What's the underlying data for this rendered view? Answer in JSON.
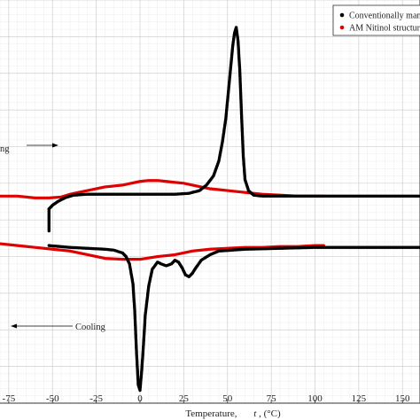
{
  "chart_data": {
    "type": "line",
    "xlabel": "Temperature,",
    "xlabel_symbol": "t",
    "xlabel_unit": ", (°C)",
    "xlim": [
      -80,
      160
    ],
    "ylim": [
      -1.0,
      1.2
    ],
    "x_ticks": [
      -75,
      -50,
      -25,
      0,
      25,
      50,
      75,
      100,
      125,
      150
    ],
    "x_tick_labels": [
      "-75",
      "-50",
      "-25",
      "0",
      "25",
      "50",
      "75",
      "100",
      "125",
      "150"
    ],
    "grid": true,
    "legend_position": "top-right",
    "annotations": [
      {
        "text": "ng",
        "arrow": "right"
      },
      {
        "text": "Cooling",
        "arrow": "left"
      }
    ],
    "series": [
      {
        "name": "Conventionally man",
        "color": "#000000",
        "marker": "dot",
        "heating_x": [
          -52,
          -50,
          -47,
          -43,
          -38,
          -30,
          -20,
          -10,
          0,
          10,
          20,
          28,
          34,
          38,
          42,
          45,
          47,
          49,
          50,
          51,
          52,
          53,
          54,
          55,
          56,
          57,
          58,
          59,
          60,
          62,
          65,
          70,
          80,
          100,
          120,
          140,
          160
        ],
        "heating_y": [
          0.06,
          0.08,
          0.1,
          0.12,
          0.135,
          0.14,
          0.14,
          0.14,
          0.14,
          0.14,
          0.14,
          0.145,
          0.16,
          0.19,
          0.24,
          0.32,
          0.42,
          0.55,
          0.65,
          0.75,
          0.85,
          0.95,
          1.02,
          1.05,
          0.98,
          0.82,
          0.58,
          0.35,
          0.22,
          0.16,
          0.135,
          0.13,
          0.13,
          0.13,
          0.13,
          0.13,
          0.13
        ],
        "step_x": [
          -52,
          -52,
          -52
        ],
        "step_y": [
          -0.06,
          0.0,
          0.06
        ],
        "cooling_x": [
          160,
          140,
          120,
          100,
          80,
          60,
          45,
          40,
          35,
          32,
          30,
          28,
          26,
          24,
          22,
          20,
          18,
          15,
          12,
          10,
          7,
          5,
          3,
          2,
          1,
          0,
          -1,
          -2,
          -3,
          -4,
          -6,
          -8,
          -10,
          -15,
          -20,
          -30,
          -40,
          -52
        ],
        "cooling_y": [
          -0.15,
          -0.15,
          -0.15,
          -0.15,
          -0.155,
          -0.16,
          -0.17,
          -0.19,
          -0.22,
          -0.26,
          -0.29,
          -0.31,
          -0.3,
          -0.26,
          -0.23,
          -0.22,
          -0.24,
          -0.25,
          -0.24,
          -0.23,
          -0.27,
          -0.36,
          -0.52,
          -0.68,
          -0.82,
          -0.93,
          -0.9,
          -0.72,
          -0.5,
          -0.35,
          -0.24,
          -0.2,
          -0.18,
          -0.165,
          -0.16,
          -0.155,
          -0.15,
          -0.14
        ]
      },
      {
        "name": "AM Nitinol structur",
        "color": "#e00000",
        "marker": "line",
        "heating_x": [
          -80,
          -70,
          -60,
          -52,
          -45,
          -40,
          -30,
          -20,
          -10,
          -5,
          0,
          5,
          10,
          15,
          20,
          25,
          30,
          40,
          50,
          60,
          70,
          80,
          90,
          100,
          105
        ],
        "heating_y": [
          0.13,
          0.13,
          0.12,
          0.12,
          0.125,
          0.14,
          0.16,
          0.18,
          0.19,
          0.2,
          0.21,
          0.215,
          0.215,
          0.21,
          0.205,
          0.2,
          0.19,
          0.17,
          0.16,
          0.15,
          0.14,
          0.135,
          0.13,
          0.13,
          0.13
        ],
        "cooling_x": [
          105,
          100,
          90,
          80,
          70,
          60,
          50,
          40,
          30,
          20,
          10,
          0,
          -10,
          -20,
          -30,
          -40,
          -50,
          -60,
          -70,
          -80
        ],
        "cooling_y": [
          -0.14,
          -0.14,
          -0.145,
          -0.145,
          -0.15,
          -0.15,
          -0.155,
          -0.16,
          -0.17,
          -0.19,
          -0.2,
          -0.215,
          -0.215,
          -0.21,
          -0.19,
          -0.17,
          -0.16,
          -0.15,
          -0.14,
          -0.13
        ]
      }
    ]
  }
}
